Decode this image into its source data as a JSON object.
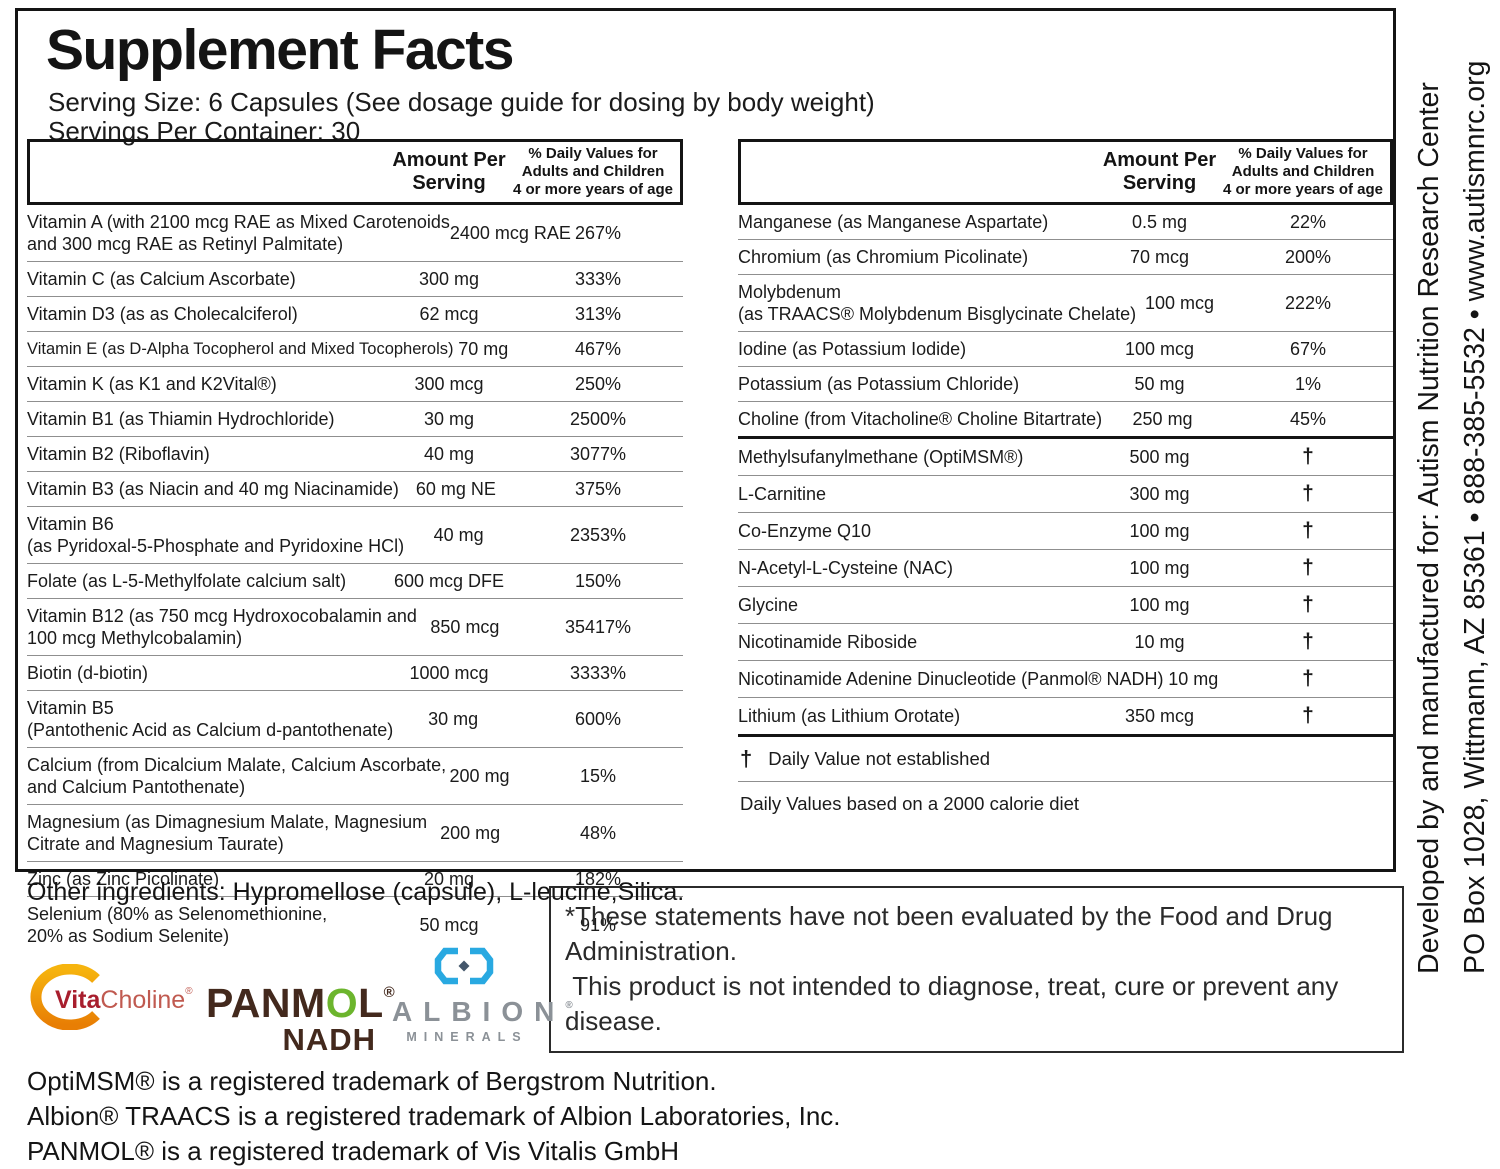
{
  "panel": {
    "title": "Supplement Facts",
    "serving_size": "Serving Size: 6 Capsules (See dosage guide for dosing by body weight)",
    "servings_per_container": "Servings Per Container: 30"
  },
  "columns": {
    "amount_header": "Amount Per\nServing",
    "dv_header": "% Daily Values for\nAdults and Children\n4 or more years of age"
  },
  "left_table": {
    "rows": [
      {
        "name": "Vitamin A (with 2100 mcg RAE as Mixed Carotenoids\nand 300 mcg RAE as Retinyl Palmitate)",
        "amount": "2400 mcg RAE",
        "dv": "267%"
      },
      {
        "name": "Vitamin C (as Calcium Ascorbate)",
        "amount": "300 mg",
        "dv": "333%"
      },
      {
        "name": "Vitamin D3 (as as Cholecalciferol)",
        "amount": "62 mcg",
        "dv": "313%"
      },
      {
        "name": "Vitamin E (as D-Alpha Tocopherol and Mixed Tocopherols)",
        "amount": "70 mg",
        "dv": "467%",
        "tight": true
      },
      {
        "name": "Vitamin K (as K1 and K2Vital®)",
        "amount": "300 mcg",
        "dv": "250%"
      },
      {
        "name": "Vitamin B1 (as Thiamin Hydrochloride)",
        "amount": "30 mg",
        "dv": "2500%"
      },
      {
        "name": "Vitamin B2 (Riboflavin)",
        "amount": "40 mg",
        "dv": "3077%"
      },
      {
        "name": "Vitamin B3 (as Niacin and 40 mg Niacinamide)",
        "amount": "60 mg NE",
        "dv": "375%"
      },
      {
        "name": "Vitamin B6\n(as Pyridoxal-5-Phosphate and Pyridoxine HCl)",
        "amount": "40 mg",
        "dv": "2353%"
      },
      {
        "name": "Folate (as L-5-Methylfolate calcium salt)",
        "amount": "600 mcg DFE",
        "dv": "150%"
      },
      {
        "name": "Vitamin B12 (as 750 mcg Hydroxocobalamin and\n100 mcg Methylcobalamin)",
        "amount": "850 mcg",
        "dv": "35417%"
      },
      {
        "name": "Biotin (d-biotin)",
        "amount": "1000 mcg",
        "dv": "3333%"
      },
      {
        "name": "Vitamin B5\n(Pantothenic Acid as Calcium d-pantothenate)",
        "amount": "30 mg",
        "dv": "600%"
      },
      {
        "name": "Calcium (from Dicalcium Malate, Calcium Ascorbate,\nand Calcium Pantothenate)",
        "amount": "200 mg",
        "dv": "15%"
      },
      {
        "name": "Magnesium (as Dimagnesium Malate, Magnesium\nCitrate and Magnesium Taurate)",
        "amount": "200 mg",
        "dv": "48%"
      },
      {
        "name": "Zinc (as Zinc Picolinate)",
        "amount": "20 mg",
        "dv": "182%"
      },
      {
        "name": "Selenium (80% as Selenomethionine,\n20% as Sodium Selenite)",
        "amount": "50 mcg",
        "dv": "91%",
        "divider": "none"
      }
    ]
  },
  "right_table": {
    "rows": [
      {
        "name": "Manganese (as Manganese Aspartate)",
        "amount": "0.5 mg",
        "dv": "22%"
      },
      {
        "name": "Chromium (as Chromium Picolinate)",
        "amount": "70 mcg",
        "dv": "200%"
      },
      {
        "name": "Molybdenum\n(as TRAACS® Molybdenum Bisglycinate Chelate)",
        "amount": "100 mcg",
        "dv": "222%"
      },
      {
        "name": "Iodine (as Potassium Iodide)",
        "amount": "100 mcg",
        "dv": "67%"
      },
      {
        "name": "Potassium (as Potassium Chloride)",
        "amount": "50 mg",
        "dv": "1%"
      },
      {
        "name": "Choline (from Vitacholine® Choline Bitartrate)",
        "amount": "250 mg",
        "dv": "45%",
        "divider": "thick"
      },
      {
        "name": "Methylsufanylmethane (OptiMSM®)",
        "amount": "500 mg",
        "dv": "†"
      },
      {
        "name": "L-Carnitine",
        "amount": "300 mg",
        "dv": "†"
      },
      {
        "name": "Co-Enzyme Q10",
        "amount": "100 mg",
        "dv": "†"
      },
      {
        "name": "N-Acetyl-L-Cysteine (NAC)",
        "amount": "100 mg",
        "dv": "†"
      },
      {
        "name": "Glycine",
        "amount": "100 mg",
        "dv": "†"
      },
      {
        "name": "Nicotinamide Riboside",
        "amount": "10 mg",
        "dv": "†"
      },
      {
        "name": "Nicotinamide Adenine Dinucleotide (Panmol® NADH)",
        "amount": "10 mg",
        "dv": "†"
      },
      {
        "name": "Lithium (as Lithium Orotate)",
        "amount": "350 mcg",
        "dv": "†",
        "divider": "thick"
      }
    ],
    "footnotes": {
      "dagger_symbol": "†",
      "dagger_text": "Daily Value not established",
      "calorie_note": "Daily Values based on a 2000 calorie diet"
    }
  },
  "other_ingredients": "Other ingredients: Hypromellose (capsule), L-leucine,Silica.",
  "disclaimer": "*These statements have not been evaluated by the Food and Drug Administration.\n This product is not intended to diagnose, treat, cure or prevent any disease.",
  "logos": {
    "vitacholine": {
      "part1": "Vita",
      "part2": "Choline",
      "reg": "®"
    },
    "panmol": {
      "pre": "PANM",
      "o": "O",
      "post": "L",
      "reg": "®",
      "sub": "NADH"
    },
    "albion": {
      "name": "ALBION",
      "reg": "®",
      "sub": "MINERALS"
    }
  },
  "logo_colors": {
    "vita_red": "#a81e2d",
    "choline_red": "#c05a50",
    "ring_top": "#f6b40e",
    "ring_bottom": "#e87e04",
    "panmol_brown": "#43291d",
    "panmol_green": "#6cb52d",
    "albion_gray": "#8b9197",
    "albion_blue": "#29a9e1",
    "albion_diamond": "#44576b"
  },
  "sidebar": {
    "line1": "Developed by and manufactured for: Autism Nutrition Research Center",
    "line2": "PO Box 1028, Wittmann, AZ 85361  •  888-385-5532  •  www.autismnrc.org"
  },
  "trademarks": [
    "OptiMSM® is a registered trademark of Bergstrom Nutrition.",
    "Albion® TRAACS is a registered trademark of Albion Laboratories, Inc.",
    "PANMOL® is a registered trademark of Vis Vitalis GmbH"
  ]
}
